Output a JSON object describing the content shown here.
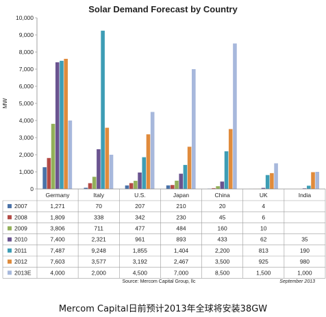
{
  "caption": "Mercom Capital日前预计2013年全球将安装38GW",
  "chart_data": {
    "type": "bar",
    "title": "Solar Demand Forecast by Country",
    "ylabel": "MW",
    "xlabel": "",
    "ylim": [
      0,
      10000
    ],
    "yticks": [
      "0",
      "1,000",
      "2,000",
      "3,000",
      "4,000",
      "5,000",
      "6,000",
      "7,000",
      "8,000",
      "9,000",
      "10,000"
    ],
    "grid": false,
    "legend": "table-below",
    "categories": [
      "Germany",
      "Italy",
      "U.S.",
      "Japan",
      "China",
      "UK",
      "India"
    ],
    "series": [
      {
        "name": "2007",
        "color": "#4a72a8",
        "values": [
          1271,
          70,
          207,
          210,
          20,
          4,
          null
        ],
        "labels": [
          "1,271",
          "70",
          "207",
          "210",
          "20",
          "4",
          ""
        ]
      },
      {
        "name": "2008",
        "color": "#b34a45",
        "values": [
          1809,
          338,
          342,
          230,
          45,
          6,
          null
        ],
        "labels": [
          "1,809",
          "338",
          "342",
          "230",
          "45",
          "6",
          ""
        ]
      },
      {
        "name": "2009",
        "color": "#93b05a",
        "values": [
          3806,
          711,
          477,
          484,
          160,
          10,
          null
        ],
        "labels": [
          "3,806",
          "711",
          "477",
          "484",
          "160",
          "10",
          ""
        ]
      },
      {
        "name": "2010",
        "color": "#6a5490",
        "values": [
          7400,
          2321,
          961,
          893,
          433,
          62,
          35
        ],
        "labels": [
          "7,400",
          "2,321",
          "961",
          "893",
          "433",
          "62",
          "35"
        ]
      },
      {
        "name": "2011",
        "color": "#3d9db5",
        "values": [
          7487,
          9248,
          1855,
          1404,
          2200,
          813,
          190
        ],
        "labels": [
          "7,487",
          "9,248",
          "1,855",
          "1,404",
          "2,200",
          "813",
          "190"
        ]
      },
      {
        "name": "2012",
        "color": "#e08b3c",
        "values": [
          7603,
          3577,
          3192,
          2467,
          3500,
          925,
          980
        ],
        "labels": [
          "7,603",
          "3,577",
          "3,192",
          "2,467",
          "3,500",
          "925",
          "980"
        ]
      },
      {
        "name": "2013E",
        "color": "#a7b8dc",
        "values": [
          4000,
          2000,
          4500,
          7000,
          8500,
          1500,
          1000
        ],
        "labels": [
          "4,000",
          "2,000",
          "4,500",
          "7,000",
          "8,500",
          "1,500",
          "1,000"
        ]
      }
    ],
    "source": "Source: Mercom Capital Group, llc",
    "date_note": "September 2013"
  }
}
